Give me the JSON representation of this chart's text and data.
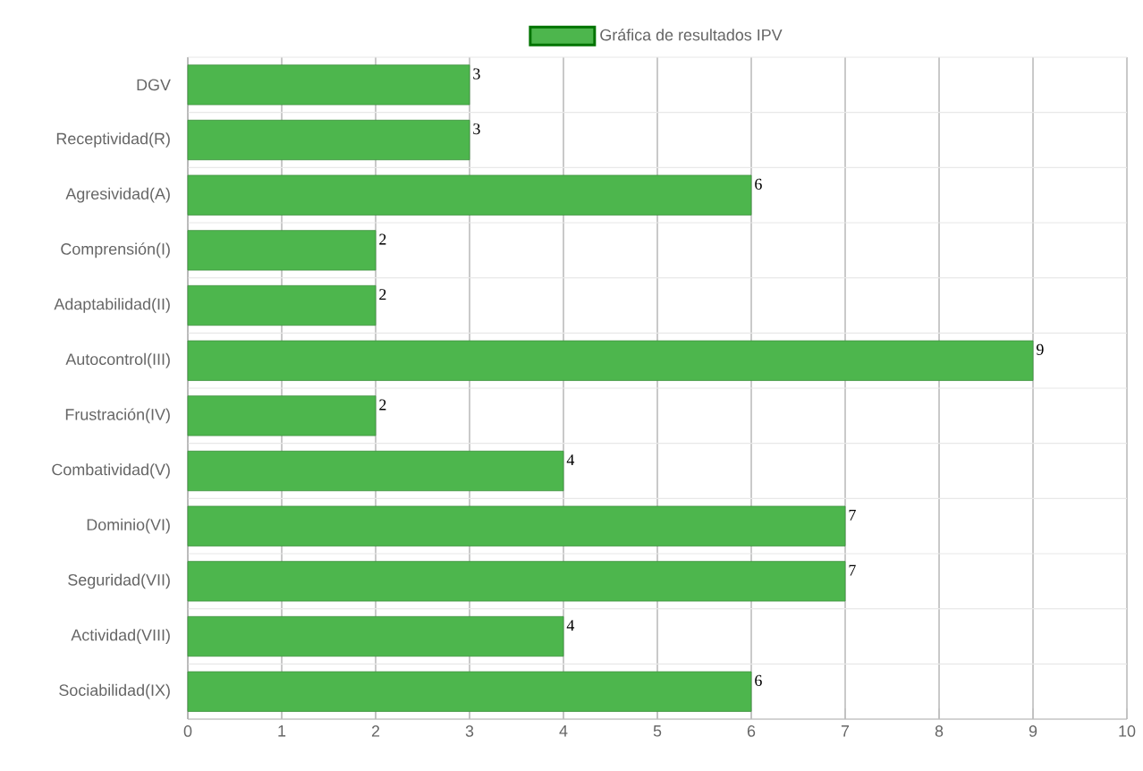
{
  "chart_data": {
    "type": "bar",
    "orientation": "horizontal",
    "categories": [
      "DGV",
      "Receptividad(R)",
      "Agresividad(A)",
      "Comprensión(I)",
      "Adaptabilidad(II)",
      "Autocontrol(III)",
      "Frustración(IV)",
      "Combatividad(V)",
      "Dominio(VI)",
      "Seguridad(VII)",
      "Actividad(VIII)",
      "Sociabilidad(IX)"
    ],
    "series": [
      {
        "name": "Gráfica de resultados IPV",
        "color": "#4db64d",
        "values": [
          3,
          3,
          6,
          2,
          2,
          9,
          2,
          4,
          7,
          7,
          4,
          6
        ]
      }
    ],
    "xlim": [
      0,
      10
    ],
    "xticks": [
      0,
      1,
      2,
      3,
      4,
      5,
      6,
      7,
      8,
      9,
      10
    ],
    "grid": true,
    "legend": "top",
    "data_labels": true
  }
}
